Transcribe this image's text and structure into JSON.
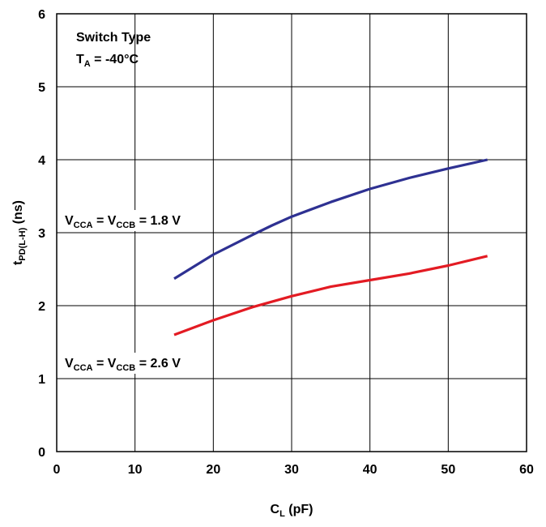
{
  "chart_data": {
    "type": "line",
    "xlabel": {
      "main": "C",
      "sub": "L",
      "rest": " (pF)"
    },
    "ylabel": {
      "main": "t",
      "sub": "PD(L-H)",
      "rest": " (ns)"
    },
    "xlim": [
      0,
      60
    ],
    "ylim": [
      0,
      6
    ],
    "xticks": [
      0,
      10,
      20,
      30,
      40,
      50,
      60
    ],
    "yticks": [
      0,
      1,
      2,
      3,
      4,
      5,
      6
    ],
    "grid": true,
    "annotation_lines": [
      {
        "main": "Switch Type",
        "sub": "",
        "rest": ""
      },
      {
        "main": "T",
        "sub": "A",
        "rest": " = -40°C"
      }
    ],
    "series": [
      {
        "color": "#2e3192",
        "label_parts": [
          {
            "t": "V",
            "sub": false
          },
          {
            "t": "CCA",
            "sub": true
          },
          {
            "t": " = V",
            "sub": false
          },
          {
            "t": "CCB",
            "sub": true
          },
          {
            "t": " = 1.8 V",
            "sub": false
          }
        ],
        "x": [
          15,
          20,
          25,
          27.5,
          30,
          35,
          40,
          45,
          50,
          55
        ],
        "y": [
          2.37,
          2.7,
          2.97,
          3.1,
          3.22,
          3.42,
          3.6,
          3.75,
          3.88,
          4.0
        ]
      },
      {
        "color": "#e31b23",
        "label_parts": [
          {
            "t": "V",
            "sub": false
          },
          {
            "t": "CCA",
            "sub": true
          },
          {
            "t": " = V",
            "sub": false
          },
          {
            "t": "CCB",
            "sub": true
          },
          {
            "t": " = 2.6 V",
            "sub": false
          }
        ],
        "x": [
          15,
          20,
          25,
          30,
          35,
          40,
          45,
          50,
          55
        ],
        "y": [
          1.6,
          1.8,
          1.98,
          2.13,
          2.26,
          2.35,
          2.44,
          2.55,
          2.68
        ]
      }
    ]
  }
}
